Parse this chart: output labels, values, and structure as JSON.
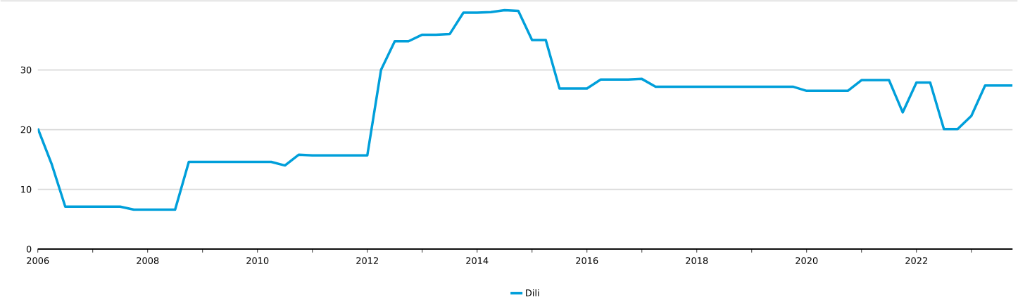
{
  "chart_data": {
    "type": "line",
    "x": [
      2006,
      2006.25,
      2006.5,
      2006.75,
      2007,
      2007.25,
      2007.5,
      2007.75,
      2008,
      2008.25,
      2008.5,
      2008.75,
      2009,
      2009.25,
      2009.5,
      2009.75,
      2010,
      2010.25,
      2010.5,
      2010.75,
      2011,
      2011.25,
      2011.5,
      2011.75,
      2012,
      2012.25,
      2012.5,
      2012.75,
      2013,
      2013.25,
      2013.5,
      2013.75,
      2014,
      2014.25,
      2014.5,
      2014.75,
      2015,
      2015.25,
      2015.5,
      2015.75,
      2016,
      2016.25,
      2016.5,
      2016.75,
      2017,
      2017.25,
      2017.5,
      2017.75,
      2018,
      2018.25,
      2018.5,
      2018.75,
      2019,
      2019.25,
      2019.5,
      2019.75,
      2020,
      2020.25,
      2020.5,
      2020.75,
      2021,
      2021.25,
      2021.5,
      2021.75,
      2022,
      2022.25,
      2022.5,
      2022.75,
      2023,
      2023.25,
      2023.5,
      2023.75
    ],
    "series": [
      {
        "name": "Dili",
        "color": "#009fda",
        "values": [
          20.2,
          14.3,
          7.1,
          7.1,
          7.1,
          7.1,
          7.1,
          6.6,
          6.6,
          6.6,
          6.6,
          14.6,
          14.6,
          14.6,
          14.6,
          14.6,
          14.6,
          14.6,
          14.0,
          15.8,
          15.7,
          15.7,
          15.7,
          15.7,
          15.7,
          30.0,
          34.8,
          34.8,
          35.9,
          35.9,
          36.0,
          39.6,
          39.6,
          39.7,
          40.0,
          39.9,
          35.0,
          35.0,
          26.9,
          26.9,
          26.9,
          28.4,
          28.4,
          28.4,
          28.5,
          27.2,
          27.2,
          27.2,
          27.2,
          27.2,
          27.2,
          27.2,
          27.2,
          27.2,
          27.2,
          27.2,
          26.5,
          26.5,
          26.5,
          26.5,
          28.3,
          28.3,
          28.3,
          22.9,
          27.9,
          27.9,
          20.1,
          20.1,
          22.3,
          27.4,
          27.4,
          27.4
        ]
      }
    ],
    "xlim": [
      2006,
      2023.75
    ],
    "xticks": [
      2006,
      {
        "value": 2007,
        "label": null
      },
      2008,
      {
        "value": 2009,
        "label": null
      },
      2010,
      {
        "value": 2011,
        "label": null
      },
      2012,
      {
        "value": 2013,
        "label": null
      },
      2014,
      {
        "value": 2015,
        "label": null
      },
      2016,
      {
        "value": 2017,
        "label": null
      },
      2018,
      {
        "value": 2019,
        "label": null
      },
      2020,
      {
        "value": 2021,
        "label": null
      },
      2022,
      {
        "value": 2023,
        "label": null
      }
    ],
    "ylim": [
      0,
      41.6
    ],
    "yticks": [
      0,
      10,
      20,
      30
    ],
    "grid": "y",
    "legend": "bottom",
    "marker": "none",
    "line_style": "solid"
  }
}
